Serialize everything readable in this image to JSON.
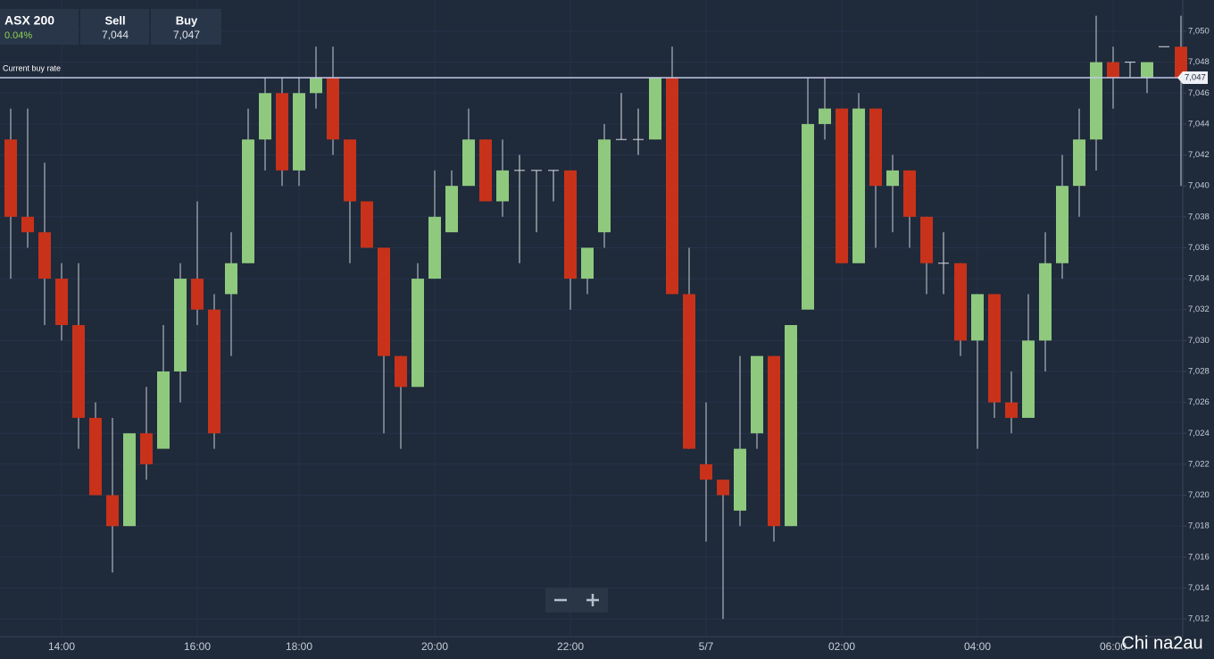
{
  "header": {
    "symbol": "ASX 200",
    "change": "0.04%",
    "sell_label": "Sell",
    "sell": "7,044",
    "buy_label": "Buy",
    "buy": "7,047"
  },
  "watermark": "Chi na2au",
  "chart_data": {
    "type": "candlestick",
    "categories": [
      null,
      null,
      null,
      "14:00",
      null,
      null,
      null,
      null,
      null,
      null,
      null,
      "16:00",
      null,
      null,
      null,
      null,
      null,
      "18:00",
      null,
      null,
      null,
      null,
      null,
      null,
      null,
      "20:00",
      null,
      null,
      null,
      null,
      null,
      null,
      null,
      "22:00",
      null,
      null,
      null,
      null,
      null,
      null,
      null,
      "5/7",
      null,
      null,
      null,
      null,
      null,
      null,
      null,
      "02:00",
      null,
      null,
      null,
      null,
      null,
      null,
      null,
      "04:00",
      null,
      null,
      null,
      null,
      null,
      null,
      null,
      "06:00",
      null,
      null,
      null,
      null
    ],
    "open": [
      7043,
      7038,
      7037,
      7034,
      7031,
      7025,
      7020,
      7018,
      7024,
      7023,
      7028,
      7034,
      7032,
      7033,
      7035,
      7043,
      7046,
      7041,
      7046,
      7047,
      7043,
      7039,
      7036,
      7029,
      7027,
      7034,
      7037,
      7040,
      7043,
      7039,
      7041,
      7041,
      7041,
      7041,
      7034,
      7037,
      7043,
      7043,
      7043,
      7047,
      7033,
      7022,
      7021,
      7019,
      7024,
      7029,
      7018,
      7032,
      7044,
      7045,
      7035,
      7045,
      7040,
      7041,
      7038,
      7035,
      7035,
      7030,
      7033,
      7026,
      7025,
      7030,
      7035,
      7040,
      7043,
      7048,
      7048,
      7047,
      7049,
      7049
    ],
    "high": [
      7045,
      7045,
      7041.5,
      7035,
      7035,
      7026,
      7025,
      7024,
      7027,
      7031,
      7035,
      7039,
      7033,
      7037,
      7045,
      7047,
      7047,
      7047,
      7049,
      7049,
      7043,
      7039,
      7036,
      7029,
      7035,
      7041,
      7041,
      7045,
      7043,
      7043,
      7042,
      7041,
      7041,
      7041,
      7036,
      7044,
      7046,
      7045,
      7047,
      7049,
      7036,
      7026,
      7021,
      7029,
      7029,
      7029,
      7031,
      7047,
      7047,
      7045,
      7046,
      7045,
      7042,
      7041,
      7038,
      7037,
      7035,
      7033,
      7033,
      7028,
      7033,
      7037,
      7042,
      7045,
      7051,
      7049,
      7048,
      7048,
      7049,
      7051
    ],
    "low": [
      7034,
      7036,
      7031,
      7030,
      7023,
      7020,
      7015,
      7018,
      7021,
      7023,
      7026,
      7031,
      7023,
      7029,
      7035,
      7041,
      7040,
      7040,
      7045,
      7042,
      7035,
      7036,
      7024,
      7023,
      7027,
      7034,
      7037,
      7040,
      7039,
      7038,
      7035,
      7037,
      7039,
      7032,
      7033,
      7036,
      7043,
      7042,
      7043,
      7033,
      7023,
      7017,
      7012,
      7018,
      7023,
      7017,
      7018,
      7032,
      7043,
      7035,
      7035,
      7036,
      7037,
      7036,
      7033,
      7033,
      7029,
      7023,
      7025,
      7024,
      7025,
      7028,
      7034,
      7038,
      7041,
      7045,
      7047,
      7046,
      7049,
      7040
    ],
    "close": [
      7038,
      7037,
      7034,
      7031,
      7025,
      7020,
      7018,
      7024,
      7022,
      7028,
      7034,
      7032,
      7024,
      7035,
      7043,
      7046,
      7041,
      7046,
      7047,
      7043,
      7039,
      7036,
      7029,
      7027,
      7034,
      7038,
      7040,
      7043,
      7039,
      7041,
      7041,
      7041,
      7041,
      7034,
      7036,
      7043,
      7043,
      7043,
      7047,
      7033,
      7023,
      7021,
      7020,
      7023,
      7029,
      7018,
      7031,
      7044,
      7045,
      7035,
      7045,
      7040,
      7041,
      7038,
      7035,
      7035,
      7030,
      7033,
      7026,
      7025,
      7030,
      7035,
      7040,
      7043,
      7048,
      7047,
      7048,
      7048,
      7049,
      7047
    ],
    "up_color": "#8fc97e",
    "down_color": "#c8321a",
    "ylim": [
      7010.85,
      7052.02
    ],
    "yticks": [
      {
        "value": 7012,
        "label": "7,012"
      },
      {
        "value": 7014,
        "label": "7,014"
      },
      {
        "value": 7016,
        "label": "7,016"
      },
      {
        "value": 7018,
        "label": "7,018"
      },
      {
        "value": 7020,
        "label": "7,020"
      },
      {
        "value": 7022,
        "label": "7,022"
      },
      {
        "value": 7024,
        "label": "7,024"
      },
      {
        "value": 7026,
        "label": "7,026"
      },
      {
        "value": 7028,
        "label": "7,028"
      },
      {
        "value": 7030,
        "label": "7,030"
      },
      {
        "value": 7032,
        "label": "7,032"
      },
      {
        "value": 7034,
        "label": "7,034"
      },
      {
        "value": 7036,
        "label": "7,036"
      },
      {
        "value": 7038,
        "label": "7,038"
      },
      {
        "value": 7040,
        "label": "7,040"
      },
      {
        "value": 7042,
        "label": "7,042"
      },
      {
        "value": 7044,
        "label": "7,044"
      },
      {
        "value": 7046,
        "label": "7,046"
      },
      {
        "value": 7048,
        "label": "7,048"
      },
      {
        "value": 7050,
        "label": "7,050"
      }
    ],
    "grid": true,
    "current_rate": {
      "label": "Current buy rate",
      "value": 7047,
      "value_label": "7,047",
      "color": "#c4c8e6"
    }
  }
}
